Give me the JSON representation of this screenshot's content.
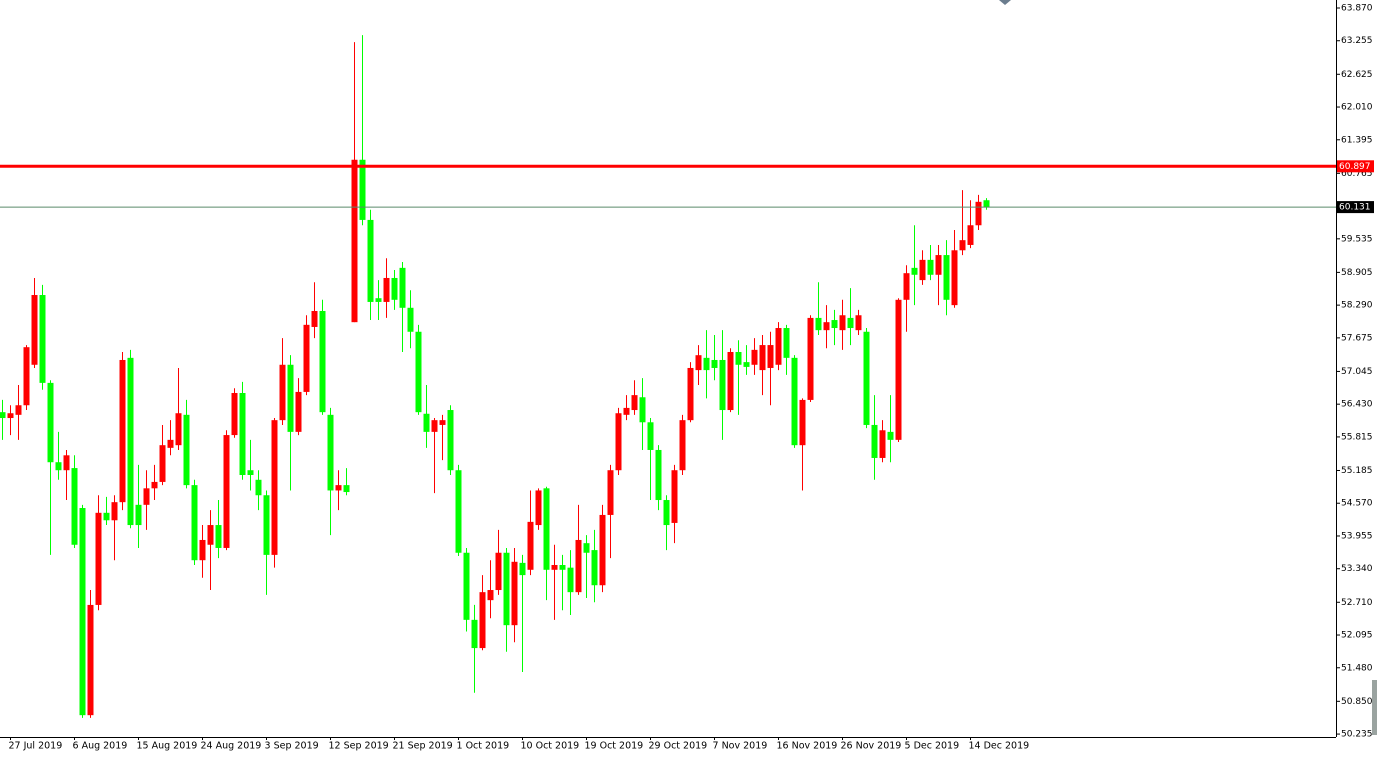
{
  "chart_data": {
    "type": "candlestick",
    "categories": [
      null,
      "27 Jul 2019",
      null,
      null,
      null,
      null,
      null,
      null,
      null,
      "6 Aug 2019",
      null,
      null,
      null,
      null,
      null,
      null,
      null,
      "15 Aug 2019",
      null,
      null,
      null,
      null,
      null,
      null,
      null,
      "24 Aug 2019",
      null,
      null,
      null,
      null,
      null,
      null,
      null,
      "3 Sep 2019",
      null,
      null,
      null,
      null,
      null,
      null,
      null,
      "12 Sep 2019",
      null,
      null,
      null,
      null,
      null,
      null,
      null,
      "21 Sep 2019",
      null,
      null,
      null,
      null,
      null,
      null,
      null,
      "1 Oct 2019",
      null,
      null,
      null,
      null,
      null,
      null,
      null,
      "10 Oct 2019",
      null,
      null,
      null,
      null,
      null,
      null,
      null,
      "19 Oct 2019",
      null,
      null,
      null,
      null,
      null,
      null,
      null,
      "29 Oct 2019",
      null,
      null,
      null,
      null,
      null,
      null,
      null,
      "7 Nov 2019",
      null,
      null,
      null,
      null,
      null,
      null,
      null,
      "16 Nov 2019",
      null,
      null,
      null,
      null,
      null,
      null,
      null,
      "26 Nov 2019",
      null,
      null,
      null,
      null,
      null,
      null,
      null,
      "5 Dec 2019",
      null,
      null,
      null,
      null,
      null,
      null,
      null,
      "14 Dec 2019",
      null,
      null
    ],
    "open": [
      56.28,
      56.17,
      56.23,
      56.41,
      57.17,
      58.48,
      56.83,
      55.34,
      55.19,
      55.23,
      54.48,
      50.59,
      52.66,
      54.39,
      54.25,
      54.59,
      57.3,
      54.54,
      54.54,
      54.85,
      54.97,
      55.61,
      55.66,
      56.23,
      54.91,
      53.5,
      53.79,
      54.16,
      53.73,
      55.85,
      56.64,
      55.19,
      55.01,
      54.72,
      53.6,
      56.13,
      57.17,
      55.91,
      56.66,
      57.88,
      58.18,
      56.23,
      54.81,
      54.91,
      57.97,
      61.02,
      59.89,
      58.42,
      58.35,
      58.8,
      58.99,
      58.24,
      57.79,
      56.25,
      55.91,
      56.04,
      56.32,
      55.19,
      53.64,
      52.38,
      51.85,
      52.75,
      52.94,
      53.64,
      52.28,
      53.45,
      53.32,
      54.16,
      54.85,
      53.32,
      53.41,
      53.36,
      52.9,
      53.82,
      53.69,
      53.03,
      54.35,
      55.19,
      56.23,
      56.32,
      56.56,
      56.09,
      55.57,
      54.63,
      54.2,
      55.19,
      56.13,
      57.07,
      57.3,
      57.26,
      57.26,
      56.32,
      57.41,
      57.22,
      57.17,
      57.07,
      57.11,
      57.17,
      57.86,
      57.3,
      55.66,
      56.51,
      58.05,
      57.82,
      58.01,
      57.82,
      58.05,
      57.82,
      57.79,
      56.04,
      55.42,
      55.91,
      55.76,
      58.39,
      58.99,
      58.76,
      59.14,
      58.86,
      59.23,
      58.29,
      59.32,
      59.42,
      59.79,
      60.26
    ],
    "high": [
      56.51,
      56.41,
      56.79,
      57.54,
      58.8,
      58.67,
      56.88,
      55.91,
      55.57,
      55.47,
      54.54,
      52.94,
      54.72,
      54.69,
      54.72,
      57.41,
      57.45,
      55.29,
      55.19,
      55.29,
      56.04,
      56.13,
      57.11,
      56.51,
      55.01,
      54.16,
      54.44,
      54.63,
      55.94,
      56.73,
      56.85,
      55.76,
      55.19,
      54.81,
      56.17,
      57.67,
      57.35,
      56.92,
      58.1,
      58.72,
      58.39,
      56.36,
      55.19,
      55.23,
      63.23,
      63.36,
      60.08,
      58.76,
      59.17,
      58.95,
      59.1,
      58.57,
      57.92,
      56.79,
      56.17,
      56.23,
      56.41,
      55.29,
      53.73,
      52.66,
      53.22,
      53.5,
      54.07,
      53.73,
      53.73,
      53.6,
      54.81,
      54.85,
      54.88,
      53.79,
      53.6,
      53.69,
      54.54,
      53.97,
      54.07,
      54.54,
      55.29,
      56.36,
      56.6,
      56.88,
      56.92,
      56.17,
      55.66,
      54.72,
      55.29,
      56.23,
      57.22,
      57.54,
      57.82,
      57.73,
      57.82,
      57.48,
      57.63,
      57.54,
      57.67,
      57.73,
      57.79,
      57.97,
      57.92,
      57.35,
      56.54,
      58.1,
      58.72,
      58.29,
      58.2,
      58.39,
      58.61,
      58.2,
      57.86,
      56.6,
      56.13,
      56.6,
      58.42,
      59.04,
      59.79,
      59.32,
      59.42,
      59.42,
      59.51,
      59.7,
      60.45,
      60.26,
      60.36,
      60.3
    ],
    "low": [
      55.76,
      55.85,
      55.76,
      56.32,
      57.11,
      56.7,
      53.6,
      55.01,
      54.63,
      53.73,
      50.54,
      50.54,
      52.56,
      54.16,
      53.5,
      54.44,
      54.1,
      53.73,
      54.07,
      54.63,
      54.91,
      55.47,
      55.57,
      54.85,
      53.41,
      53.17,
      52.94,
      53.54,
      53.69,
      55.8,
      55.01,
      54.81,
      54.44,
      52.85,
      53.36,
      56.04,
      54.81,
      55.85,
      56.6,
      57.67,
      56.23,
      53.97,
      54.44,
      54.72,
      57.97,
      59.79,
      58.01,
      58.01,
      58.05,
      58.2,
      57.41,
      57.48,
      56.23,
      55.61,
      54.76,
      55.38,
      55.1,
      53.58,
      52.16,
      51.01,
      51.81,
      52.41,
      52.85,
      51.78,
      51.96,
      51.4,
      53.22,
      54.07,
      52.75,
      52.38,
      52.56,
      52.47,
      52.85,
      52.79,
      52.71,
      52.9,
      53.54,
      55.1,
      56.13,
      56.23,
      55.57,
      54.63,
      54.44,
      53.69,
      53.82,
      55.1,
      56.09,
      56.79,
      56.54,
      56.88,
      55.76,
      56.28,
      56.23,
      56.98,
      56.98,
      56.6,
      56.41,
      57.07,
      56.98,
      55.61,
      54.81,
      56.47,
      57.73,
      57.48,
      57.54,
      57.45,
      57.54,
      57.73,
      55.98,
      55.01,
      55.34,
      55.34,
      55.72,
      57.79,
      58.29,
      58.67,
      58.76,
      58.29,
      58.1,
      58.24,
      59.23,
      59.36,
      59.7,
      60.08
    ],
    "close": [
      56.17,
      56.26,
      56.41,
      57.5,
      58.48,
      56.83,
      55.34,
      55.19,
      55.47,
      53.79,
      50.59,
      52.66,
      54.39,
      54.25,
      54.59,
      57.26,
      54.16,
      54.16,
      54.85,
      54.97,
      55.66,
      55.76,
      56.26,
      54.91,
      53.5,
      53.88,
      54.16,
      53.73,
      55.85,
      56.64,
      55.1,
      55.1,
      54.72,
      53.6,
      56.13,
      57.17,
      55.91,
      56.66,
      57.92,
      58.18,
      56.28,
      54.81,
      54.91,
      54.78,
      61.02,
      59.89,
      58.35,
      58.35,
      58.8,
      58.39,
      58.24,
      57.79,
      56.28,
      55.91,
      56.13,
      56.13,
      55.19,
      53.64,
      52.38,
      51.85,
      52.9,
      52.94,
      53.64,
      52.28,
      53.47,
      53.22,
      54.22,
      54.81,
      53.32,
      53.41,
      53.32,
      52.9,
      53.88,
      53.64,
      53.03,
      54.35,
      55.19,
      56.26,
      56.36,
      56.6,
      56.09,
      55.57,
      54.63,
      54.16,
      55.19,
      56.13,
      57.11,
      57.35,
      57.07,
      57.11,
      56.32,
      57.41,
      57.17,
      57.13,
      57.45,
      57.54,
      57.54,
      57.86,
      57.3,
      55.66,
      56.51,
      58.05,
      57.82,
      57.97,
      57.86,
      58.1,
      57.86,
      58.1,
      56.04,
      55.42,
      55.94,
      55.76,
      58.39,
      58.89,
      58.86,
      59.14,
      58.86,
      59.23,
      58.39,
      59.32,
      59.51,
      59.79,
      60.23,
      60.13
    ],
    "up_color": "#ff0000",
    "down_color": "#00ff00",
    "ylim": [
      50.18,
      64.02
    ],
    "yticks": [
      {
        "value": 63.87,
        "label": "63.870"
      },
      63.255,
      62.625,
      {
        "value": 62.01,
        "label": "62.010"
      },
      61.395,
      60.765,
      59.535,
      58.905,
      {
        "value": 58.29,
        "label": "58.290"
      },
      57.675,
      57.045,
      {
        "value": 56.43,
        "label": "56.430"
      },
      55.815,
      55.185,
      {
        "value": 54.57,
        "label": "54.570"
      },
      53.955,
      {
        "value": 53.34,
        "label": "53.340"
      },
      {
        "value": 52.71,
        "label": "52.710"
      },
      52.095,
      {
        "value": 51.48,
        "label": "51.480"
      },
      {
        "value": 50.85,
        "label": "50.850"
      },
      50.235
    ],
    "hlines": [
      {
        "value": 60.897,
        "color": "#ff0000"
      },
      {
        "value": 60.131,
        "color": "#5a8a6a"
      }
    ]
  }
}
